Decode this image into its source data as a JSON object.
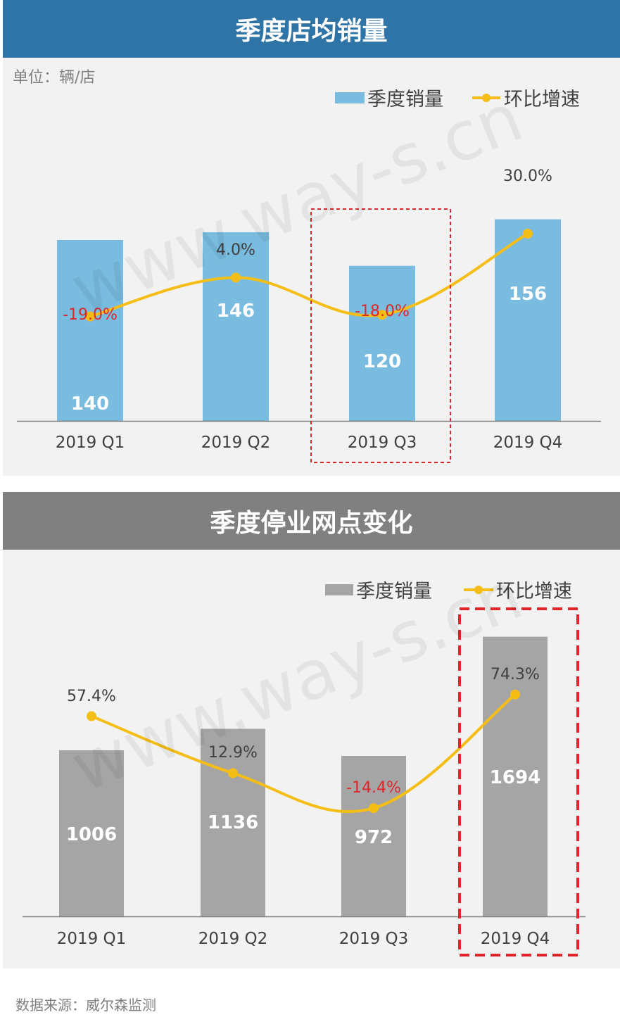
{
  "charts": [
    {
      "banner_title": "季度店均销量",
      "banner_color": "#2e74a6",
      "unit_label": "单位：辆/店",
      "highlight_label": "2019 Q3",
      "chart_data": {
        "type": "bar+line",
        "categories": [
          "2019 Q1",
          "2019 Q2",
          "2019 Q3",
          "2019 Q4"
        ],
        "series": [
          {
            "name": "季度销量",
            "type": "bar",
            "color": "#79bcdf",
            "values": [
              140,
              146,
              120,
              156
            ],
            "labels": [
              "140",
              "146",
              "120",
              "156"
            ]
          },
          {
            "name": "环比增速",
            "type": "line",
            "color": "#f5be17",
            "values": [
              -19.0,
              4.0,
              -18.0,
              30.0
            ],
            "labels": [
              "-19.0%",
              "4.0%",
              "-18.0%",
              "30.0%"
            ]
          }
        ],
        "negative_label_color": "#e0262a",
        "positive_label_color": "#404040",
        "legend": "top-right"
      }
    },
    {
      "banner_title": "季度停业网点变化",
      "banner_color": "#808080",
      "unit_label": "",
      "highlight_label": "2019 Q4",
      "chart_data": {
        "type": "bar+line",
        "categories": [
          "2019 Q1",
          "2019 Q2",
          "2019 Q3",
          "2019 Q4"
        ],
        "series": [
          {
            "name": "季度销量",
            "type": "bar",
            "color": "#a5a5a5",
            "values": [
              1006,
              1136,
              972,
              1694
            ],
            "labels": [
              "1006",
              "1136",
              "972",
              "1694"
            ]
          },
          {
            "name": "环比增速",
            "type": "line",
            "color": "#f5be17",
            "values": [
              57.4,
              12.9,
              -14.4,
              74.3
            ],
            "labels": [
              "57.4%",
              "12.9%",
              "-14.4%",
              "74.3%"
            ]
          }
        ],
        "negative_label_color": "#e0262a",
        "positive_label_color": "#404040",
        "legend": "top-right"
      }
    }
  ],
  "watermark": "www.way-s.cn",
  "footer_source": "数据来源：威尔森监测"
}
